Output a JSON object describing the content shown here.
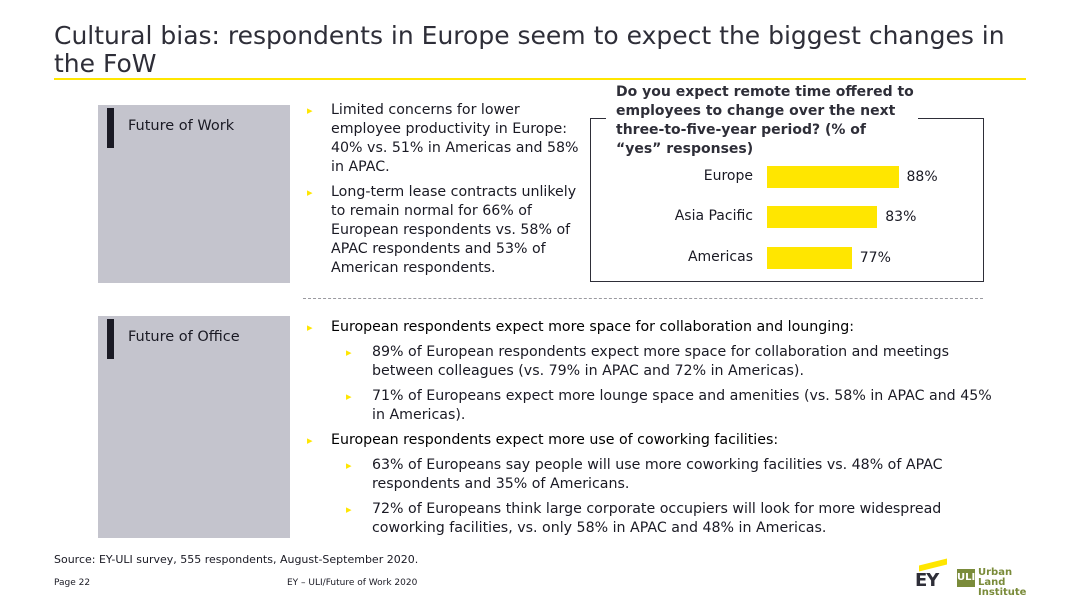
{
  "title": "Cultural bias: respondents in Europe seem to expect the biggest changes in the FoW",
  "colors": {
    "accent": "#ffe600",
    "label_box": "#c4c4cd",
    "text": "#2e2e38"
  },
  "sections": {
    "work": {
      "label": "Future of Work",
      "bullets": [
        "Limited concerns for lower employee productivity in Europe: 40% vs. 51% in Americas and 58% in APAC.",
        "Long-term lease contracts unlikely to remain normal for 66% of European respondents vs. 58% of APAC respondents and 53% of American respondents."
      ]
    },
    "office": {
      "label": "Future of Office",
      "groups": [
        {
          "head": "European respondents expect more space for collaboration and lounging:",
          "subs": [
            "89% of European respondents expect more space for collaboration and meetings between colleagues (vs. 79% in APAC and 72% in Americas).",
            "71% of Europeans expect more lounge space and amenities (vs. 58% in APAC and 45% in Americas)."
          ]
        },
        {
          "head": "European respondents expect more use of coworking facilities:",
          "subs": [
            "63% of Europeans say people will use more coworking facilities vs. 48% of APAC respondents and 35% of Americans.",
            "72% of Europeans think large corporate occupiers will look for more widespread coworking facilities, vs. only 58% in APAC and 48% in Americas."
          ]
        }
      ]
    }
  },
  "chart_data": {
    "type": "bar",
    "orientation": "horizontal",
    "title": "Do you expect remote time offered to employees to change over the next three-to-five-year period? (% of “yes” responses)",
    "categories": [
      "Europe",
      "Asia Pacific",
      "Americas"
    ],
    "values": [
      88,
      83,
      77
    ],
    "value_labels": [
      "88%",
      "83%",
      "77%"
    ],
    "xlim": [
      70,
      90
    ],
    "grid": false,
    "legend": "none"
  },
  "footer": {
    "source": "Source: EY-ULI survey, 555 respondents, August-September 2020.",
    "page": "Page 22",
    "doc": "EY – ULI/Future of Work 2020",
    "ey_logo_text": "EY",
    "uli_mark": "ULI",
    "uli_name_1": "Urban Land",
    "uli_name_2": "Institute"
  }
}
